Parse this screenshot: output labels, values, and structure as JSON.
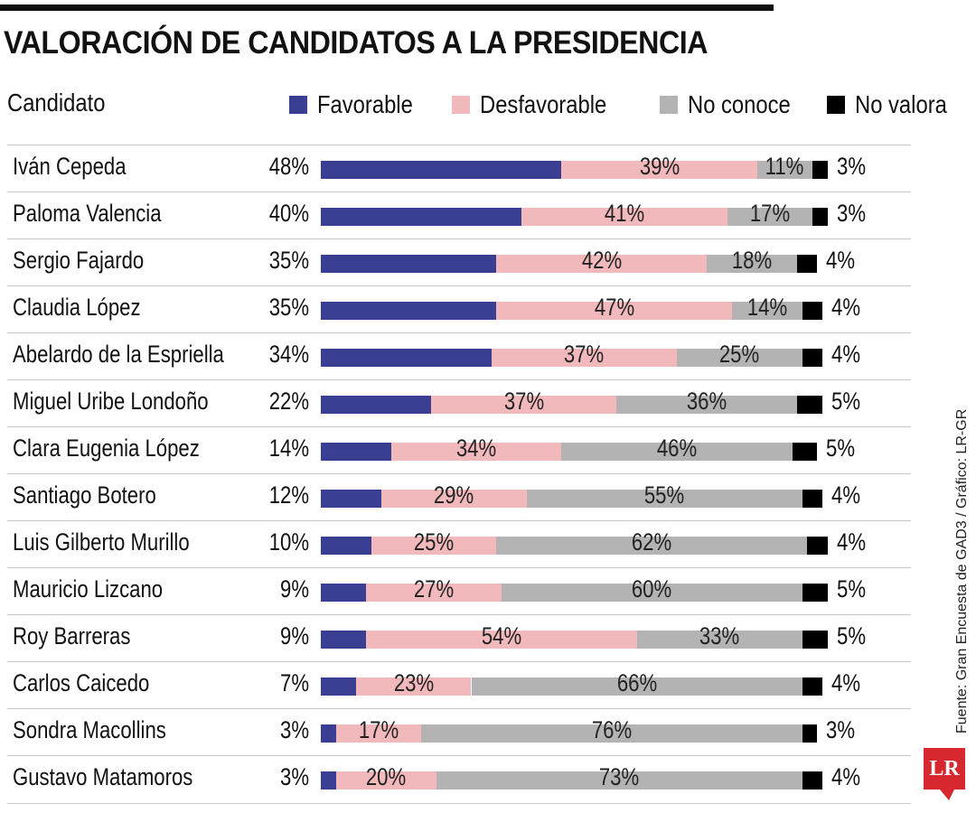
{
  "title": "VALORACIÓN DE CANDIDATOS A LA PRESIDENCIA",
  "header_label": "Candidato",
  "credit": "Fuente: Gran Encuesta de GAD3 / Gráfico: LR-GR",
  "logo_text": "LR",
  "colors": {
    "favorable": "#3b3f94",
    "desfavorable": "#f2b9bd",
    "no_conoce": "#b3b3b3",
    "no_valora": "#000000"
  },
  "chart_data": {
    "type": "bar",
    "stacked": true,
    "orientation": "horizontal",
    "title": "VALORACIÓN DE CANDIDATOS A LA PRESIDENCIA",
    "legend": [
      "Favorable",
      "Desfavorable",
      "No conoce",
      "No valora"
    ],
    "legend_position": "top",
    "categories": [
      "Iván Cepeda",
      "Paloma Valencia",
      "Sergio Fajardo",
      "Claudia López",
      "Abelardo de la Espriella",
      "Miguel Uribe Londoño",
      "Clara Eugenia López",
      "Santiago Botero",
      "Luis Gilberto Murillo",
      "Mauricio Lizcano",
      "Roy Barreras",
      "Carlos Caicedo",
      "Sondra Macollins",
      "Gustavo Matamoros"
    ],
    "series": [
      {
        "name": "Favorable",
        "values": [
          48,
          40,
          35,
          35,
          34,
          22,
          14,
          12,
          10,
          9,
          9,
          7,
          3,
          3
        ]
      },
      {
        "name": "Desfavorable",
        "values": [
          39,
          41,
          42,
          47,
          37,
          37,
          34,
          29,
          25,
          27,
          54,
          23,
          17,
          20
        ]
      },
      {
        "name": "No conoce",
        "values": [
          11,
          17,
          18,
          14,
          25,
          36,
          46,
          55,
          62,
          60,
          33,
          66,
          76,
          73
        ]
      },
      {
        "name": "No valora",
        "values": [
          3,
          3,
          4,
          4,
          4,
          5,
          5,
          4,
          4,
          5,
          5,
          4,
          3,
          4
        ]
      }
    ],
    "unit": "%"
  }
}
